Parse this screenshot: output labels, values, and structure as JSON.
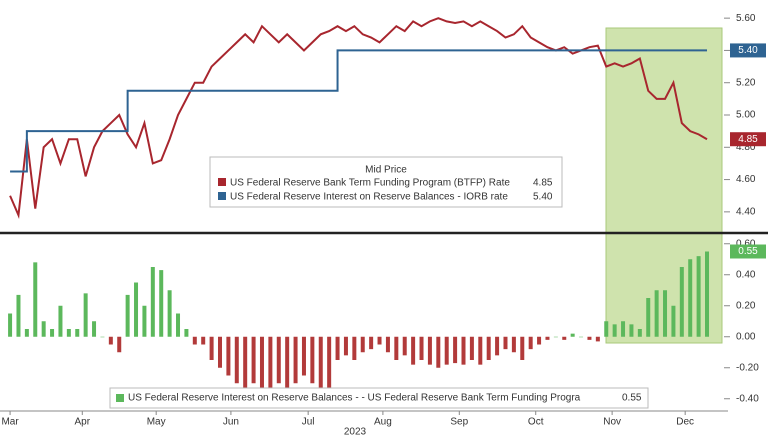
{
  "chart_data": [
    {
      "type": "line",
      "ylim": [
        4.3,
        5.7
      ],
      "yticks": [
        {
          "value": 4.4,
          "label": "4.40"
        },
        {
          "value": 4.6,
          "label": "4.60"
        },
        {
          "value": 4.8,
          "label": "4.80"
        },
        {
          "value": 5.0,
          "label": "5.00"
        },
        {
          "value": 5.2,
          "label": "5.20"
        },
        {
          "value": 5.4,
          "label": "5.40"
        },
        {
          "value": 5.6,
          "label": "5.60"
        }
      ],
      "legend_title": "Mid Price",
      "series": [
        {
          "name": "US Federal Reserve Bank Term Funding Program (BTFP) Rate",
          "legend_value": "4.85",
          "last_value_label": "4.85",
          "color": "#a8262e",
          "step": false,
          "values": [
            4.5,
            4.38,
            4.85,
            4.42,
            4.8,
            4.85,
            4.7,
            4.85,
            4.85,
            4.62,
            4.8,
            4.9,
            4.95,
            5.0,
            4.88,
            4.8,
            4.95,
            4.7,
            4.72,
            4.85,
            5.0,
            5.1,
            5.2,
            5.2,
            5.3,
            5.35,
            5.4,
            5.45,
            5.5,
            5.45,
            5.55,
            5.5,
            5.45,
            5.5,
            5.45,
            5.4,
            5.45,
            5.5,
            5.52,
            5.55,
            5.52,
            5.55,
            5.5,
            5.48,
            5.45,
            5.5,
            5.55,
            5.52,
            5.58,
            5.55,
            5.58,
            5.6,
            5.58,
            5.57,
            5.58,
            5.55,
            5.58,
            5.55,
            5.52,
            5.48,
            5.5,
            5.55,
            5.48,
            5.45,
            5.42,
            5.4,
            5.42,
            5.38,
            5.4,
            5.42,
            5.43,
            5.3,
            5.32,
            5.3,
            5.32,
            5.35,
            5.15,
            5.1,
            5.1,
            5.2,
            4.95,
            4.9,
            4.88,
            4.85
          ]
        },
        {
          "name": "US Federal Reserve Interest on Reserve Balances - IORB rate",
          "legend_value": "5.40",
          "last_value_label": "5.40",
          "color": "#2e6392",
          "step": true,
          "values": [
            4.65,
            4.65,
            4.9,
            4.9,
            4.9,
            4.9,
            4.9,
            4.9,
            4.9,
            4.9,
            4.9,
            4.9,
            4.9,
            4.9,
            5.15,
            5.15,
            5.15,
            5.15,
            5.15,
            5.15,
            5.15,
            5.15,
            5.15,
            5.15,
            5.15,
            5.15,
            5.15,
            5.15,
            5.15,
            5.15,
            5.15,
            5.15,
            5.15,
            5.15,
            5.15,
            5.15,
            5.15,
            5.15,
            5.15,
            5.4,
            5.4,
            5.4,
            5.4,
            5.4,
            5.4,
            5.4,
            5.4,
            5.4,
            5.4,
            5.4,
            5.4,
            5.4,
            5.4,
            5.4,
            5.4,
            5.4,
            5.4,
            5.4,
            5.4,
            5.4,
            5.4,
            5.4,
            5.4,
            5.4,
            5.4,
            5.4,
            5.4,
            5.4,
            5.4,
            5.4,
            5.4,
            5.4,
            5.4,
            5.4,
            5.4,
            5.4,
            5.4,
            5.4,
            5.4,
            5.4,
            5.4,
            5.4,
            5.4,
            5.4
          ]
        }
      ]
    },
    {
      "type": "bar",
      "ylim": [
        -0.45,
        0.65
      ],
      "yticks": [
        {
          "value": -0.4,
          "label": "-0.40"
        },
        {
          "value": -0.2,
          "label": "-0.20"
        },
        {
          "value": 0,
          "label": "0.00"
        },
        {
          "value": 0.2,
          "label": "0.20"
        },
        {
          "value": 0.4,
          "label": "0.40"
        },
        {
          "value": 0.6,
          "label": "0.60"
        }
      ],
      "xlim": [
        -1.2,
        85.5
      ],
      "xticks": [
        {
          "value": 0,
          "label": "Mar"
        },
        {
          "value": 8.6,
          "label": "Apr"
        },
        {
          "value": 17.4,
          "label": "May"
        },
        {
          "value": 26.3,
          "label": "Jun"
        },
        {
          "value": 35.5,
          "label": "Jul"
        },
        {
          "value": 44.4,
          "label": "Aug"
        },
        {
          "value": 53.5,
          "label": "Sep"
        },
        {
          "value": 62.6,
          "label": "Oct"
        },
        {
          "value": 71.7,
          "label": "Nov"
        },
        {
          "value": 80.4,
          "label": "Dec"
        }
      ],
      "xlabel": "2023",
      "positive_color": "#5cb85c",
      "negative_color": "#b23a3a",
      "series": [
        {
          "name": "US Federal Reserve Interest on Reserve Balances - - US Federal Reserve Bank Term Funding Progra",
          "legend_value": "0.55",
          "last_value_label": "0.55",
          "color": "#5cb85c",
          "values": [
            0.15,
            0.27,
            0.05,
            0.48,
            0.1,
            0.05,
            0.2,
            0.05,
            0.05,
            0.28,
            0.1,
            0.0,
            -0.05,
            -0.1,
            0.27,
            0.35,
            0.2,
            0.45,
            0.43,
            0.3,
            0.15,
            0.05,
            -0.05,
            -0.05,
            -0.15,
            -0.2,
            -0.25,
            -0.3,
            -0.35,
            -0.3,
            -0.4,
            -0.35,
            -0.3,
            -0.35,
            -0.3,
            -0.25,
            -0.3,
            -0.35,
            -0.37,
            -0.15,
            -0.12,
            -0.15,
            -0.1,
            -0.08,
            -0.05,
            -0.1,
            -0.15,
            -0.12,
            -0.18,
            -0.15,
            -0.18,
            -0.2,
            -0.18,
            -0.17,
            -0.18,
            -0.15,
            -0.18,
            -0.15,
            -0.12,
            -0.08,
            -0.1,
            -0.15,
            -0.08,
            -0.05,
            -0.02,
            0.0,
            -0.02,
            0.02,
            0.0,
            -0.02,
            -0.03,
            0.1,
            0.08,
            0.1,
            0.08,
            0.05,
            0.25,
            0.3,
            0.3,
            0.2,
            0.45,
            0.5,
            0.52,
            0.55
          ]
        }
      ]
    }
  ]
}
